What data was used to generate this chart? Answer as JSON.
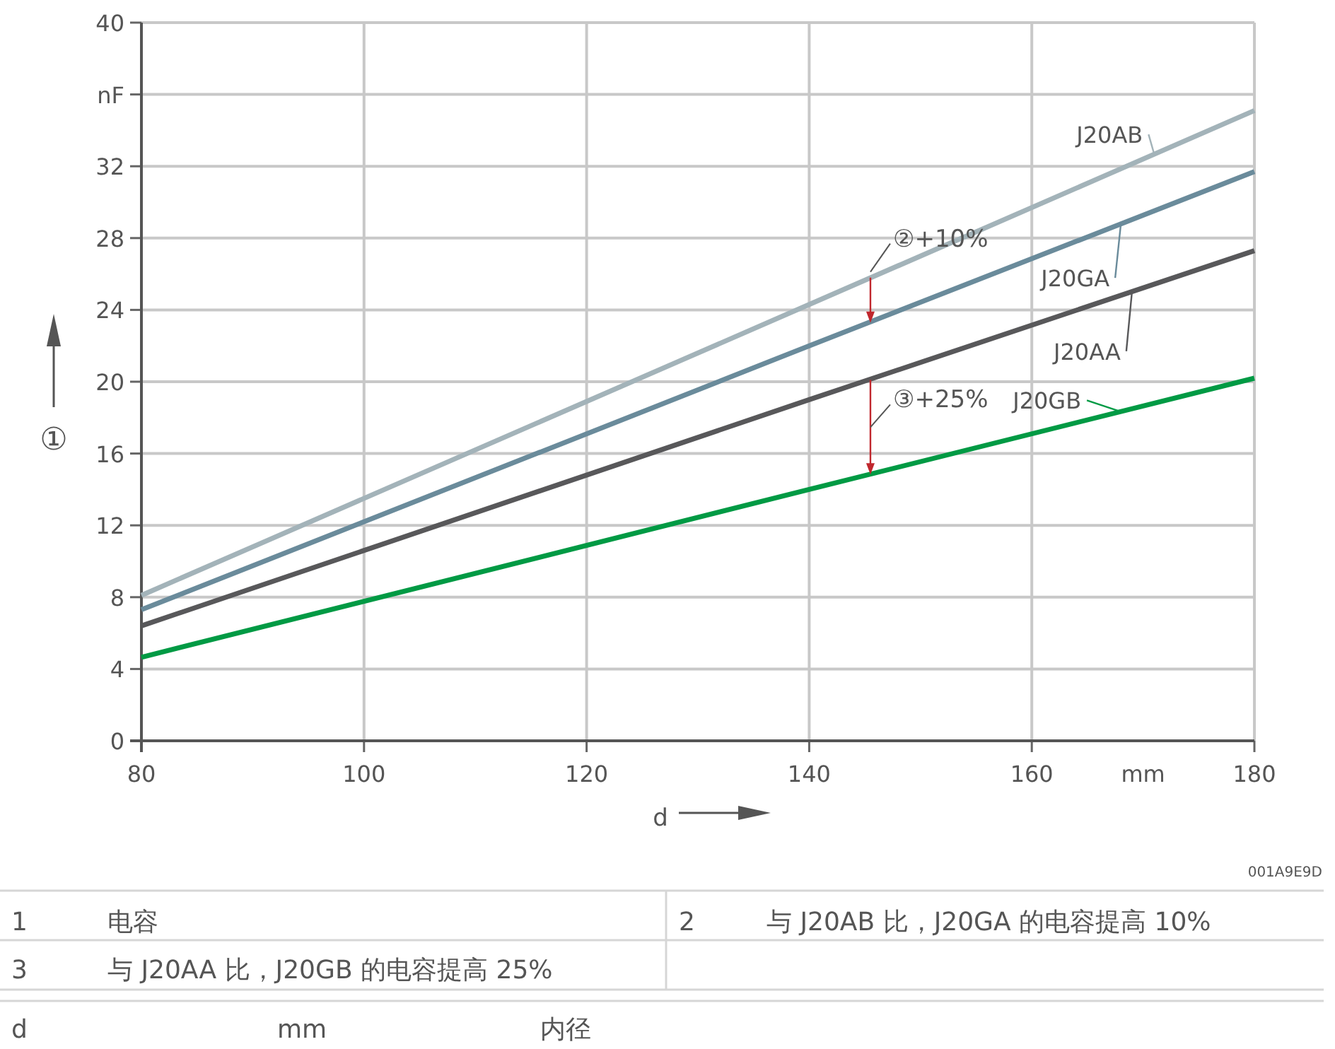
{
  "chart_data": {
    "type": "line",
    "xlabel": "d",
    "ylabel": "①",
    "xlim": [
      80,
      180
    ],
    "ylim": [
      0,
      40
    ],
    "xticks": [
      80,
      100,
      120,
      140,
      160,
      {
        "value": 170,
        "label": "mm"
      },
      180
    ],
    "yticks": [
      0,
      4,
      8,
      12,
      16,
      20,
      24,
      28,
      32,
      {
        "value": 36,
        "label": "nF"
      },
      40
    ],
    "grid": true,
    "legend": "right",
    "marker": "none",
    "line_style": "solid",
    "series": [
      {
        "name": "J20AB",
        "color": "#a3b3b9",
        "x": [
          80,
          140,
          180
        ],
        "values": [
          8.1,
          24.3,
          35.1
        ]
      },
      {
        "name": "J20GA",
        "color": "#6a8b9b",
        "x": [
          80,
          140,
          180
        ],
        "values": [
          7.3,
          22.0,
          31.7
        ]
      },
      {
        "name": "J20AA",
        "color": "#58585a",
        "x": [
          80,
          140,
          180
        ],
        "values": [
          6.4,
          19.0,
          27.3
        ]
      },
      {
        "name": "J20GB",
        "color": "#009a44",
        "x": [
          80,
          140,
          180
        ],
        "values": [
          4.65,
          14.0,
          20.2
        ]
      }
    ],
    "annotations": [
      {
        "text": "②+10%",
        "x": 145.5,
        "y": 25.8
      },
      {
        "text": "③+25%",
        "x": 145.5,
        "y": 20.1
      },
      "001A9E9D",
      "1",
      "电容",
      "2",
      "与 J20AB 比，J20GA 的电容提高 10%",
      "3",
      "与 J20AA 比，J20GB 的电容提高 25%",
      "d",
      "mm",
      "内径"
    ]
  }
}
